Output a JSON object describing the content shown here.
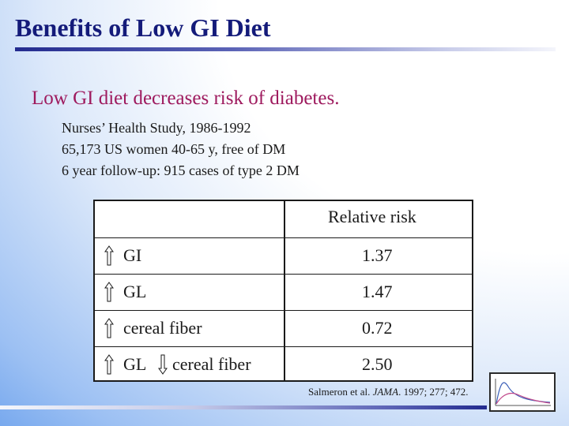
{
  "title": "Benefits of Low GI Diet",
  "subhead": "Low GI diet decreases risk of diabetes.",
  "study": {
    "lines": [
      "Nurses’ Health Study, 1986-1992",
      "65,173 US women 40-65 y, free of DM",
      "6 year follow-up: 915 cases of type 2 DM"
    ]
  },
  "table": {
    "column_header": "Relative risk",
    "rows": [
      {
        "label": "GI",
        "second_label": "",
        "value": "1.37",
        "arrow": "up"
      },
      {
        "label": "GL",
        "second_label": "",
        "value": "1.47",
        "arrow": "up"
      },
      {
        "label": "cereal fiber",
        "second_label": "",
        "value": "0.72",
        "arrow": "up"
      },
      {
        "label": "GL",
        "second_label": "cereal fiber",
        "value": "2.50",
        "arrow": "up",
        "second_arrow": "down"
      }
    ]
  },
  "citation": {
    "before": "Salmeron et al. ",
    "journal": "JAMA",
    "after": ". 1997; 277; 472."
  },
  "icons": [
    "up-arrow-icon",
    "down-arrow-icon",
    "curve-logo-icon"
  ],
  "colors": {
    "title": "#141b7a",
    "subhead": "#9e1a5e",
    "rule": "#232b8f"
  }
}
